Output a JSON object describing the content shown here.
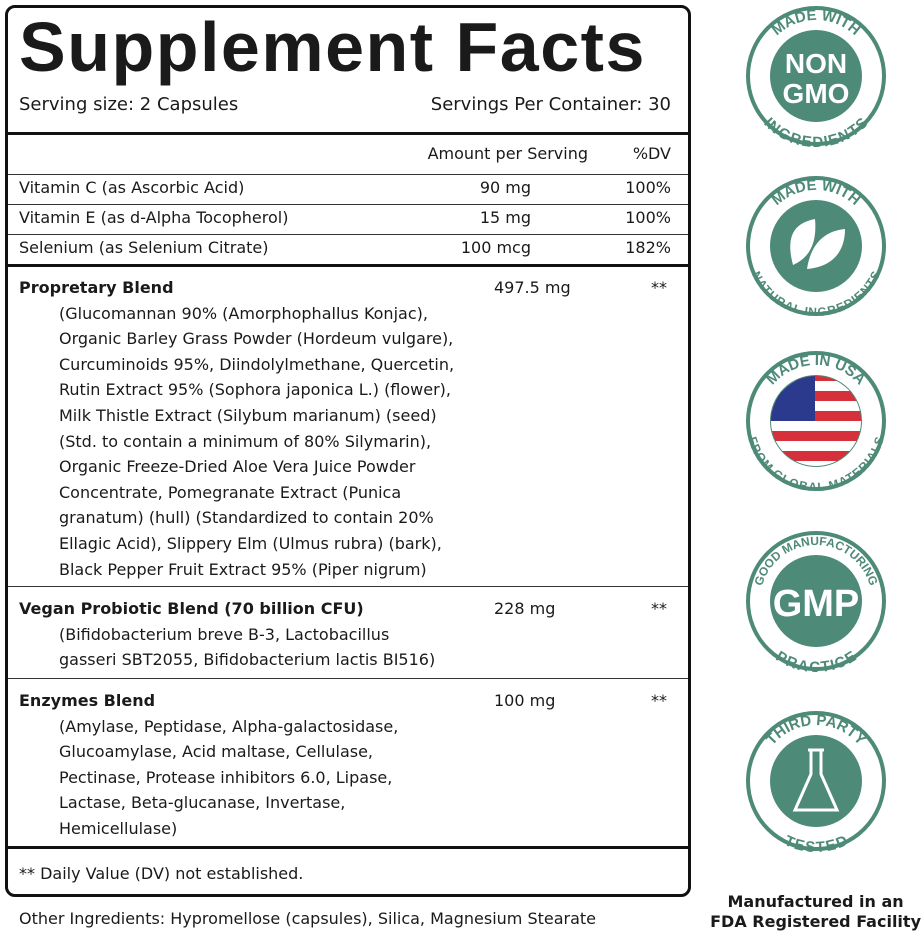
{
  "title": "Supplement Facts",
  "serving_size": "Serving size: 2 Capsules",
  "servings_per_container": "Servings Per Container: 30",
  "header": {
    "amount": "Amount per Serving",
    "dv": "%DV"
  },
  "nutrients": [
    {
      "name": "Vitamin C (as Ascorbic Acid)",
      "amount": "90 mg",
      "dv": "100%"
    },
    {
      "name": "Vitamin E (as d-Alpha Tocopherol)",
      "amount": "15 mg",
      "dv": "100%"
    },
    {
      "name": "Selenium (as Selenium Citrate)",
      "amount": "100 mcg",
      "dv": "182%"
    }
  ],
  "blends": [
    {
      "name": "Propretary Blend",
      "amount": "497.5 mg",
      "dv": "**",
      "contents": "(Glucomannan 90% (Amorphophallus Konjac),\nOrganic Barley Grass Powder (Hordeum vulgare),\nCurcuminoids 95%, Diindolylmethane, Quercetin,\nRutin Extract 95% (Sophora japonica L.) (flower),\nMilk Thistle Extract (Silybum marianum) (seed)\n(Std. to contain a minimum of 80% Silymarin),\nOrganic Freeze-Dried Aloe Vera Juice Powder\nConcentrate, Pomegranate Extract (Punica\ngranatum) (hull) (Standardized to contain 20%\nEllagic Acid), Slippery Elm (Ulmus rubra) (bark),\nBlack Pepper Fruit Extract 95% (Piper nigrum)"
    },
    {
      "name": "Vegan Probiotic Blend (70 billion CFU)",
      "amount": "228 mg",
      "dv": "**",
      "contents": "(Bifidobacterium breve B-3, Lactobacillus\ngasseri SBT2055, Bifidobacterium lactis BI516)"
    },
    {
      "name": "Enzymes Blend",
      "amount": "100 mg",
      "dv": "**",
      "contents": "(Amylase, Peptidase, Alpha-galactosidase,\nGlucoamylase, Acid maltase, Cellulase,\nPectinase, Protease inhibitors 6.0, Lipase,\nLactase, Beta-glucanase, Invertase,\nHemicellulase)"
    }
  ],
  "footnote": "** Daily Value (DV) not established.",
  "other_ingredients": "Other Ingredients: Hypromellose (capsules), Silica, Magnesium Stearate",
  "manufactured": {
    "line1": "Manufactured in an",
    "line2": "FDA Registered Facility"
  },
  "badge_color": "#4e8a78",
  "badges": [
    {
      "icon": "non-gmo",
      "top": "MADE WITH",
      "bottom": "INGREDIENTS",
      "center1": "NON",
      "center2": "GMO"
    },
    {
      "icon": "leaf",
      "top": "MADE WITH",
      "bottom": "NATURAL INGREDIENTS"
    },
    {
      "icon": "usa-flag",
      "top": "MADE IN USA",
      "bottom": "FROM GLOBAL MATERIALS"
    },
    {
      "icon": "gmp",
      "top": "GOOD MANUFACTURING",
      "bottom": "PRACTICE",
      "center1": "GMP"
    },
    {
      "icon": "flask",
      "top": "THIRD PARTY",
      "bottom": "TESTED"
    }
  ]
}
